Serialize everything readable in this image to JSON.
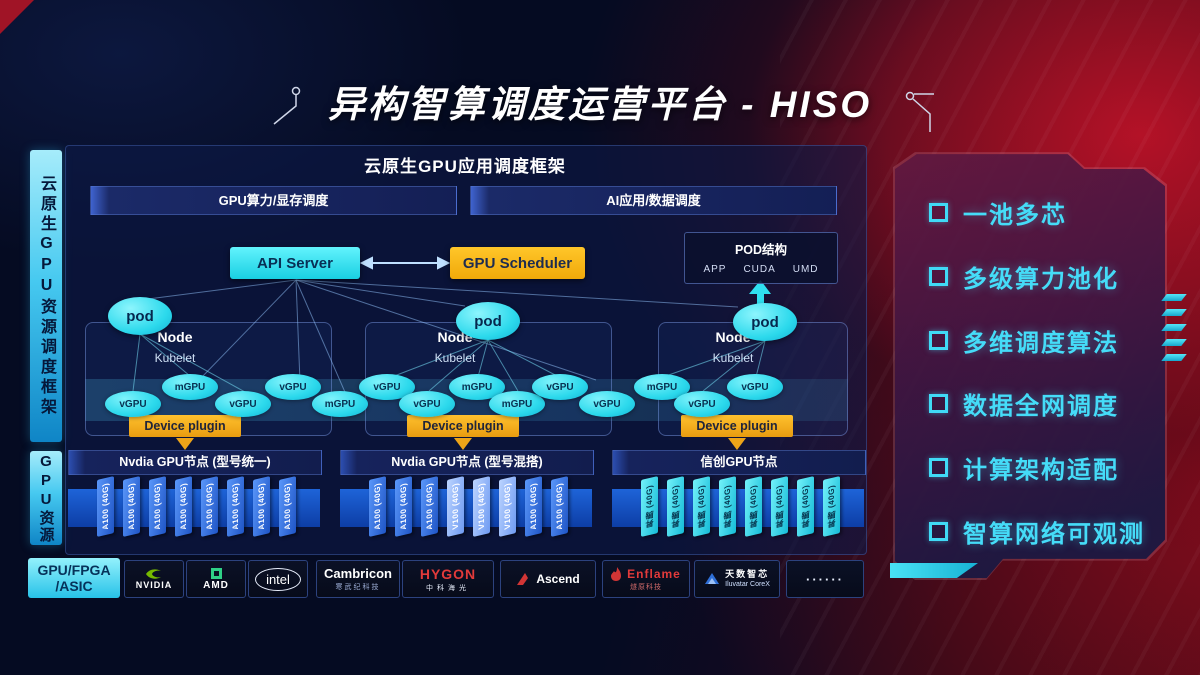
{
  "title": "异构智算调度运营平台 - HISO",
  "sidebar": {
    "top_label": "云原生GPU资源调度框架",
    "bottom_label": "GPU资源"
  },
  "framework": {
    "header": "云原生GPU应用调度框架",
    "lanes": [
      "GPU算力/显存调度",
      "AI应用/数据调度"
    ],
    "api_server": "API Server",
    "gpu_scheduler": "GPU Scheduler",
    "pod_panel": {
      "title": "POD结构",
      "items": [
        "APP",
        "CUDA",
        "UMD"
      ]
    },
    "pod_label": "pod",
    "node_label": "Node",
    "kubelet_label": "Kubelet",
    "device_plugin": "Device plugin",
    "gpu_ellipses": [
      "vGPU",
      "mGPU",
      "vGPU",
      "vGPU",
      "mGPU",
      "vGPU",
      "vGPU",
      "mGPU",
      "mGPU",
      "vGPU",
      "vGPU",
      "mGPU",
      "vGPU",
      "vGPU"
    ]
  },
  "gpu_sections": [
    {
      "title": "Nvdia GPU节点 (型号统一)",
      "cards": [
        "A100 (40G)",
        "A100 (40G)",
        "A100 (40G)",
        "A100 (40G)",
        "A100 (40G)",
        "A100 (40G)",
        "A100 (40G)",
        "A100 (40G)"
      ]
    },
    {
      "title": "Nvdia GPU节点 (型号混搭)",
      "cards": [
        "A100 (40G)",
        "A100 (40G)",
        "A100 (40G)",
        "V100 (40G)",
        "V100 (40G)",
        "V100 (40G)",
        "A100 (40G)",
        "A100 (40G)"
      ]
    },
    {
      "title": "信创GPU节点",
      "cards": [
        "昇腾 (40G)",
        "昇腾 (40G)",
        "昇腾 (40G)",
        "昇腾 (40G)",
        "昇腾 (40G)",
        "昇腾 (40G)",
        "昇腾 (40G)",
        "昇腾 (40G)"
      ]
    }
  ],
  "vendors": {
    "category_lines": [
      "GPU/FPGA",
      "/ASIC"
    ],
    "logos": [
      {
        "name": "nvidia",
        "text": "NVIDIA"
      },
      {
        "name": "amd",
        "text": "AMD"
      },
      {
        "name": "intel",
        "text": "intel"
      },
      {
        "name": "cambricon",
        "text": "Cambricon",
        "sub": "寒武纪科技"
      },
      {
        "name": "hygon",
        "text": "HYGON",
        "sub": "中科海光"
      },
      {
        "name": "ascend",
        "text": "Ascend"
      },
      {
        "name": "enflame",
        "text": "Enflame",
        "sub": "燧原科技"
      },
      {
        "name": "iluvatar",
        "text": "天数智芯",
        "sub": "Iluvatar CoreX"
      },
      {
        "name": "more",
        "text": "······"
      }
    ]
  },
  "features": [
    "一池多芯",
    "多级算力池化",
    "多维调度算法",
    "数据全网调度",
    "计算架构适配",
    "智算网络可观测"
  ],
  "colors": {
    "accent_cyan": "#35e2f2",
    "accent_yellow": "#f6b60b",
    "card_blue": "#2e7df5",
    "bg_red": "#8f0f22"
  }
}
